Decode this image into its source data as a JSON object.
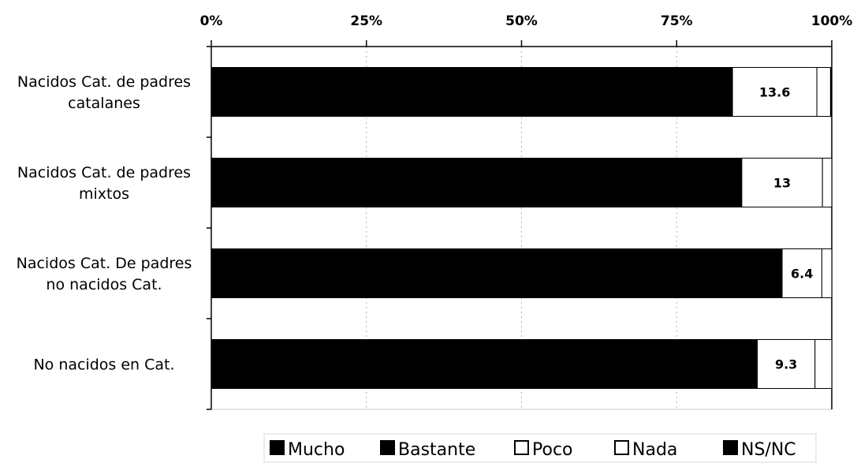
{
  "chart_data": {
    "type": "bar",
    "orientation": "horizontal",
    "stacked": true,
    "title": "",
    "xlabel": "",
    "ylabel": "",
    "xlim": [
      0,
      100
    ],
    "x_ticks": [
      "0%",
      "25%",
      "50%",
      "75%",
      "100%"
    ],
    "grid": true,
    "legend_position": "bottom",
    "categories": [
      [
        "Nacidos Cat. de padres",
        "catalanes"
      ],
      [
        "Nacidos Cat. de padres",
        "mixtos"
      ],
      [
        "Nacidos Cat. De padres",
        "no nacidos Cat."
      ],
      [
        "No nacidos en Cat."
      ]
    ],
    "series": [
      {
        "name": "Mucho",
        "color": "#000000",
        "values": [
          84.0,
          85.5,
          92.0,
          88.0
        ]
      },
      {
        "name": "Bastante",
        "color": "#000000",
        "values": [
          0.0,
          0.0,
          0.0,
          0.0
        ]
      },
      {
        "name": "Poco",
        "color": "#ffffff",
        "values": [
          13.6,
          13.0,
          6.4,
          9.3
        ]
      },
      {
        "name": "Nada",
        "color": "#ffffff",
        "values": [
          2.2,
          1.5,
          1.6,
          2.7
        ]
      },
      {
        "name": "NS/NC",
        "color": "#000000",
        "values": [
          0.2,
          0.0,
          0.0,
          0.0
        ]
      }
    ],
    "data_labels": [
      "13.6",
      "13",
      "6.4",
      "9.3"
    ],
    "data_label_series": "Poco"
  }
}
